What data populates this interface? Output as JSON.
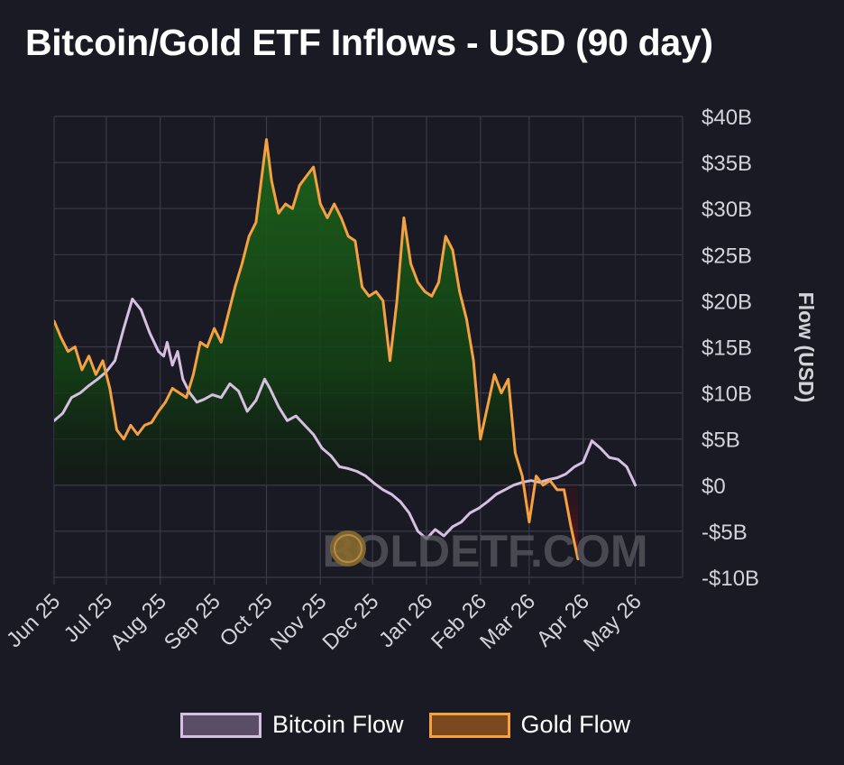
{
  "chart_data": {
    "type": "line",
    "title": "Bitcoin/Gold ETF Inflows - USD (90 day)",
    "ylabel": "Flow (USD)",
    "xlabel": "",
    "ylim": [
      -10,
      40
    ],
    "y_ticks": [
      {
        "value": 40,
        "label": "$40B"
      },
      {
        "value": 35,
        "label": "$35B"
      },
      {
        "value": 30,
        "label": "$30B"
      },
      {
        "value": 25,
        "label": "$25B"
      },
      {
        "value": 20,
        "label": "$20B"
      },
      {
        "value": 15,
        "label": "$15B"
      },
      {
        "value": 10,
        "label": "$10B"
      },
      {
        "value": 5,
        "label": "$5B"
      },
      {
        "value": 0,
        "label": "$0"
      },
      {
        "value": -5,
        "label": "-$5B"
      },
      {
        "value": -10,
        "label": "-$10B"
      }
    ],
    "x_ticks": [
      {
        "value": "2025-06-01",
        "label": "Jun 25"
      },
      {
        "value": "2025-07-01",
        "label": "Jul 25"
      },
      {
        "value": "2025-08-01",
        "label": "Aug 25"
      },
      {
        "value": "2025-09-01",
        "label": "Sep 25"
      },
      {
        "value": "2025-10-01",
        "label": "Oct 25"
      },
      {
        "value": "2025-11-01",
        "label": "Nov 25"
      },
      {
        "value": "2025-12-01",
        "label": "Dec 25"
      },
      {
        "value": "2026-01-01",
        "label": "Jan 26"
      },
      {
        "value": "2026-02-01",
        "label": "Feb 26"
      },
      {
        "value": "2026-03-01",
        "label": "Mar 26"
      },
      {
        "value": "2026-04-01",
        "label": "Apr 26"
      },
      {
        "value": "2026-05-01",
        "label": "May 26"
      }
    ],
    "grid": true,
    "legend_position": "bottom",
    "series": [
      {
        "name": "Bitcoin Flow",
        "color": "#d6bfe0",
        "points": [
          [
            "2025-06-01",
            7.0
          ],
          [
            "2025-06-06",
            7.8
          ],
          [
            "2025-06-11",
            9.5
          ],
          [
            "2025-06-16",
            10.0
          ],
          [
            "2025-06-21",
            10.8
          ],
          [
            "2025-06-26",
            11.5
          ],
          [
            "2025-07-01",
            12.3
          ],
          [
            "2025-07-06",
            13.5
          ],
          [
            "2025-07-11",
            17.0
          ],
          [
            "2025-07-16",
            20.2
          ],
          [
            "2025-07-21",
            19.0
          ],
          [
            "2025-07-26",
            16.5
          ],
          [
            "2025-07-31",
            14.5
          ],
          [
            "2025-08-03",
            14.0
          ],
          [
            "2025-08-05",
            15.5
          ],
          [
            "2025-08-08",
            13.0
          ],
          [
            "2025-08-11",
            14.5
          ],
          [
            "2025-08-14",
            11.5
          ],
          [
            "2025-08-18",
            10.0
          ],
          [
            "2025-08-22",
            9.0
          ],
          [
            "2025-08-26",
            9.3
          ],
          [
            "2025-08-31",
            9.8
          ],
          [
            "2025-09-05",
            9.5
          ],
          [
            "2025-09-10",
            11.0
          ],
          [
            "2025-09-15",
            10.2
          ],
          [
            "2025-09-20",
            8.0
          ],
          [
            "2025-09-25",
            9.2
          ],
          [
            "2025-09-30",
            11.5
          ],
          [
            "2025-10-03",
            10.5
          ],
          [
            "2025-10-08",
            8.5
          ],
          [
            "2025-10-13",
            7.0
          ],
          [
            "2025-10-18",
            7.5
          ],
          [
            "2025-10-23",
            6.5
          ],
          [
            "2025-10-28",
            5.5
          ],
          [
            "2025-11-02",
            4.0
          ],
          [
            "2025-11-07",
            3.2
          ],
          [
            "2025-11-12",
            2.0
          ],
          [
            "2025-11-17",
            1.8
          ],
          [
            "2025-11-22",
            1.5
          ],
          [
            "2025-11-27",
            1.0
          ],
          [
            "2025-12-02",
            0.2
          ],
          [
            "2025-12-07",
            -0.5
          ],
          [
            "2025-12-12",
            -1.0
          ],
          [
            "2025-12-17",
            -1.8
          ],
          [
            "2025-12-22",
            -3.0
          ],
          [
            "2025-12-27",
            -5.0
          ],
          [
            "2026-01-01",
            -5.8
          ],
          [
            "2026-01-06",
            -4.8
          ],
          [
            "2026-01-11",
            -5.5
          ],
          [
            "2026-01-16",
            -4.5
          ],
          [
            "2026-01-21",
            -4.0
          ],
          [
            "2026-01-26",
            -3.0
          ],
          [
            "2026-01-31",
            -2.5
          ],
          [
            "2026-02-05",
            -1.8
          ],
          [
            "2026-02-10",
            -1.0
          ],
          [
            "2026-02-15",
            -0.5
          ],
          [
            "2026-02-20",
            0.0
          ],
          [
            "2026-02-25",
            0.3
          ],
          [
            "2026-03-02",
            0.5
          ],
          [
            "2026-03-07",
            0.3
          ],
          [
            "2026-03-12",
            0.6
          ],
          [
            "2026-03-17",
            0.8
          ],
          [
            "2026-03-22",
            1.2
          ],
          [
            "2026-03-27",
            2.0
          ],
          [
            "2026-04-01",
            2.5
          ],
          [
            "2026-04-06",
            4.8
          ],
          [
            "2026-04-11",
            4.0
          ],
          [
            "2026-04-16",
            3.0
          ],
          [
            "2026-04-21",
            2.8
          ],
          [
            "2026-04-26",
            2.0
          ],
          [
            "2026-05-01",
            0.0
          ]
        ]
      },
      {
        "name": "Gold Flow",
        "color": "#f5a142",
        "points": [
          [
            "2025-06-01",
            17.8
          ],
          [
            "2025-06-05",
            16.0
          ],
          [
            "2025-06-09",
            14.5
          ],
          [
            "2025-06-13",
            15.0
          ],
          [
            "2025-06-17",
            12.5
          ],
          [
            "2025-06-21",
            14.0
          ],
          [
            "2025-06-25",
            12.0
          ],
          [
            "2025-06-29",
            13.5
          ],
          [
            "2025-07-03",
            10.5
          ],
          [
            "2025-07-07",
            6.0
          ],
          [
            "2025-07-11",
            5.0
          ],
          [
            "2025-07-15",
            6.5
          ],
          [
            "2025-07-19",
            5.5
          ],
          [
            "2025-07-23",
            6.5
          ],
          [
            "2025-07-27",
            6.8
          ],
          [
            "2025-07-31",
            8.0
          ],
          [
            "2025-08-04",
            9.0
          ],
          [
            "2025-08-08",
            10.5
          ],
          [
            "2025-08-12",
            10.0
          ],
          [
            "2025-08-16",
            9.5
          ],
          [
            "2025-08-20",
            12.0
          ],
          [
            "2025-08-24",
            15.5
          ],
          [
            "2025-08-28",
            15.0
          ],
          [
            "2025-09-01",
            17.0
          ],
          [
            "2025-09-05",
            15.5
          ],
          [
            "2025-09-09",
            18.5
          ],
          [
            "2025-09-13",
            21.5
          ],
          [
            "2025-09-17",
            24.0
          ],
          [
            "2025-09-21",
            27.0
          ],
          [
            "2025-09-25",
            28.5
          ],
          [
            "2025-09-28",
            33.0
          ],
          [
            "2025-10-01",
            37.5
          ],
          [
            "2025-10-04",
            33.0
          ],
          [
            "2025-10-08",
            29.5
          ],
          [
            "2025-10-12",
            30.5
          ],
          [
            "2025-10-16",
            30.0
          ],
          [
            "2025-10-20",
            32.5
          ],
          [
            "2025-10-24",
            33.5
          ],
          [
            "2025-10-28",
            34.5
          ],
          [
            "2025-11-01",
            30.5
          ],
          [
            "2025-11-05",
            29.0
          ],
          [
            "2025-11-09",
            30.5
          ],
          [
            "2025-11-13",
            29.0
          ],
          [
            "2025-11-17",
            27.0
          ],
          [
            "2025-11-21",
            26.5
          ],
          [
            "2025-11-25",
            21.5
          ],
          [
            "2025-11-29",
            20.5
          ],
          [
            "2025-12-03",
            21.0
          ],
          [
            "2025-12-07",
            20.0
          ],
          [
            "2025-12-11",
            13.5
          ],
          [
            "2025-12-15",
            20.0
          ],
          [
            "2025-12-19",
            29.0
          ],
          [
            "2025-12-23",
            24.0
          ],
          [
            "2025-12-27",
            22.0
          ],
          [
            "2025-12-31",
            21.0
          ],
          [
            "2026-01-04",
            20.5
          ],
          [
            "2026-01-08",
            22.0
          ],
          [
            "2026-01-12",
            27.0
          ],
          [
            "2026-01-16",
            25.5
          ],
          [
            "2026-01-20",
            21.0
          ],
          [
            "2026-01-24",
            18.0
          ],
          [
            "2026-01-28",
            13.5
          ],
          [
            "2026-02-01",
            5.0
          ],
          [
            "2026-02-05",
            8.5
          ],
          [
            "2026-02-09",
            12.0
          ],
          [
            "2026-02-13",
            10.0
          ],
          [
            "2026-02-17",
            11.5
          ],
          [
            "2026-02-21",
            3.5
          ],
          [
            "2026-02-25",
            1.0
          ],
          [
            "2026-03-01",
            -4.0
          ],
          [
            "2026-03-05",
            1.0
          ],
          [
            "2026-03-09",
            0.0
          ],
          [
            "2026-03-13",
            0.5
          ],
          [
            "2026-03-17",
            -0.5
          ],
          [
            "2026-03-21",
            -0.5
          ],
          [
            "2026-03-25",
            -4.5
          ],
          [
            "2026-03-29",
            -8.0
          ]
        ]
      }
    ],
    "watermark": "BOLDETF.COM"
  },
  "legend": {
    "items": [
      {
        "name": "Bitcoin Flow",
        "swatch_border": "#d6bfe0",
        "swatch_fill": "#5a4d66"
      },
      {
        "name": "Gold Flow",
        "swatch_border": "#f5a142",
        "swatch_fill": "#7a4a1e"
      }
    ]
  },
  "colors": {
    "background": "#1a1a24",
    "grid": "#3a3a48",
    "tick_text": "#d2d2d8",
    "fill_positive": "#1a5a1a",
    "fill_negative": "#7a1520"
  }
}
